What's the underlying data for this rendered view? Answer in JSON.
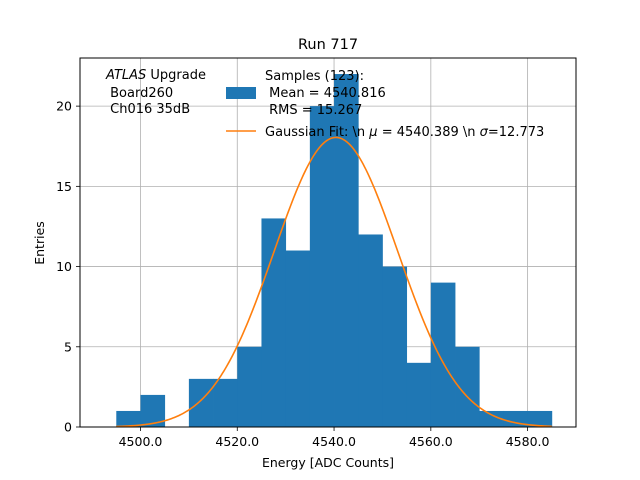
{
  "chart_data": {
    "type": "bar",
    "title": "Run 717",
    "xlabel": "Energy [ADC Counts]",
    "ylabel": "Entries",
    "xlim": [
      4487.5,
      4590.0
    ],
    "ylim": [
      0,
      23
    ],
    "grid": true,
    "xticks": [
      4500.0,
      4520.0,
      4540.0,
      4560.0,
      4580.0
    ],
    "xtick_labels": [
      "4500.0",
      "4520.0",
      "4540.0",
      "4560.0",
      "4580.0"
    ],
    "yticks": [
      0,
      5,
      10,
      15,
      20
    ],
    "ytick_labels": [
      "0",
      "5",
      "10",
      "15",
      "20"
    ],
    "histogram": {
      "bin_edges": [
        4495,
        4500,
        4505,
        4510,
        4515,
        4520,
        4525,
        4530,
        4535,
        4540,
        4545,
        4550,
        4555,
        4560,
        4565,
        4570,
        4575,
        4580,
        4585
      ],
      "counts": [
        1,
        2,
        0,
        3,
        3,
        5,
        13,
        11,
        20,
        22,
        12,
        10,
        4,
        9,
        5,
        1,
        1,
        1
      ],
      "color": "#1f77b4"
    },
    "fit": {
      "mu": 4540.389,
      "sigma": 12.773,
      "amplitude": 18.05,
      "x_range": [
        4495,
        4585
      ],
      "color": "#ff7f0e"
    },
    "annotation": {
      "line1_italic": "ATLAS",
      "line1_rest": " Upgrade",
      "line2": " Board260",
      "line3": " Ch016 35dB"
    },
    "legend": {
      "position": "top-center",
      "entries": [
        {
          "kind": "patch",
          "color": "#1f77b4",
          "lines": [
            "Samples (123):",
            " Mean = 4540.816",
            " RMS = 15.267"
          ]
        },
        {
          "kind": "line",
          "color": "#ff7f0e",
          "label_a": "Gaussian Fit: \\n ",
          "label_mu": "μ",
          "label_b": " = 4540.389 \\n ",
          "label_sigma": "σ",
          "label_c": "=12.773"
        }
      ]
    }
  }
}
